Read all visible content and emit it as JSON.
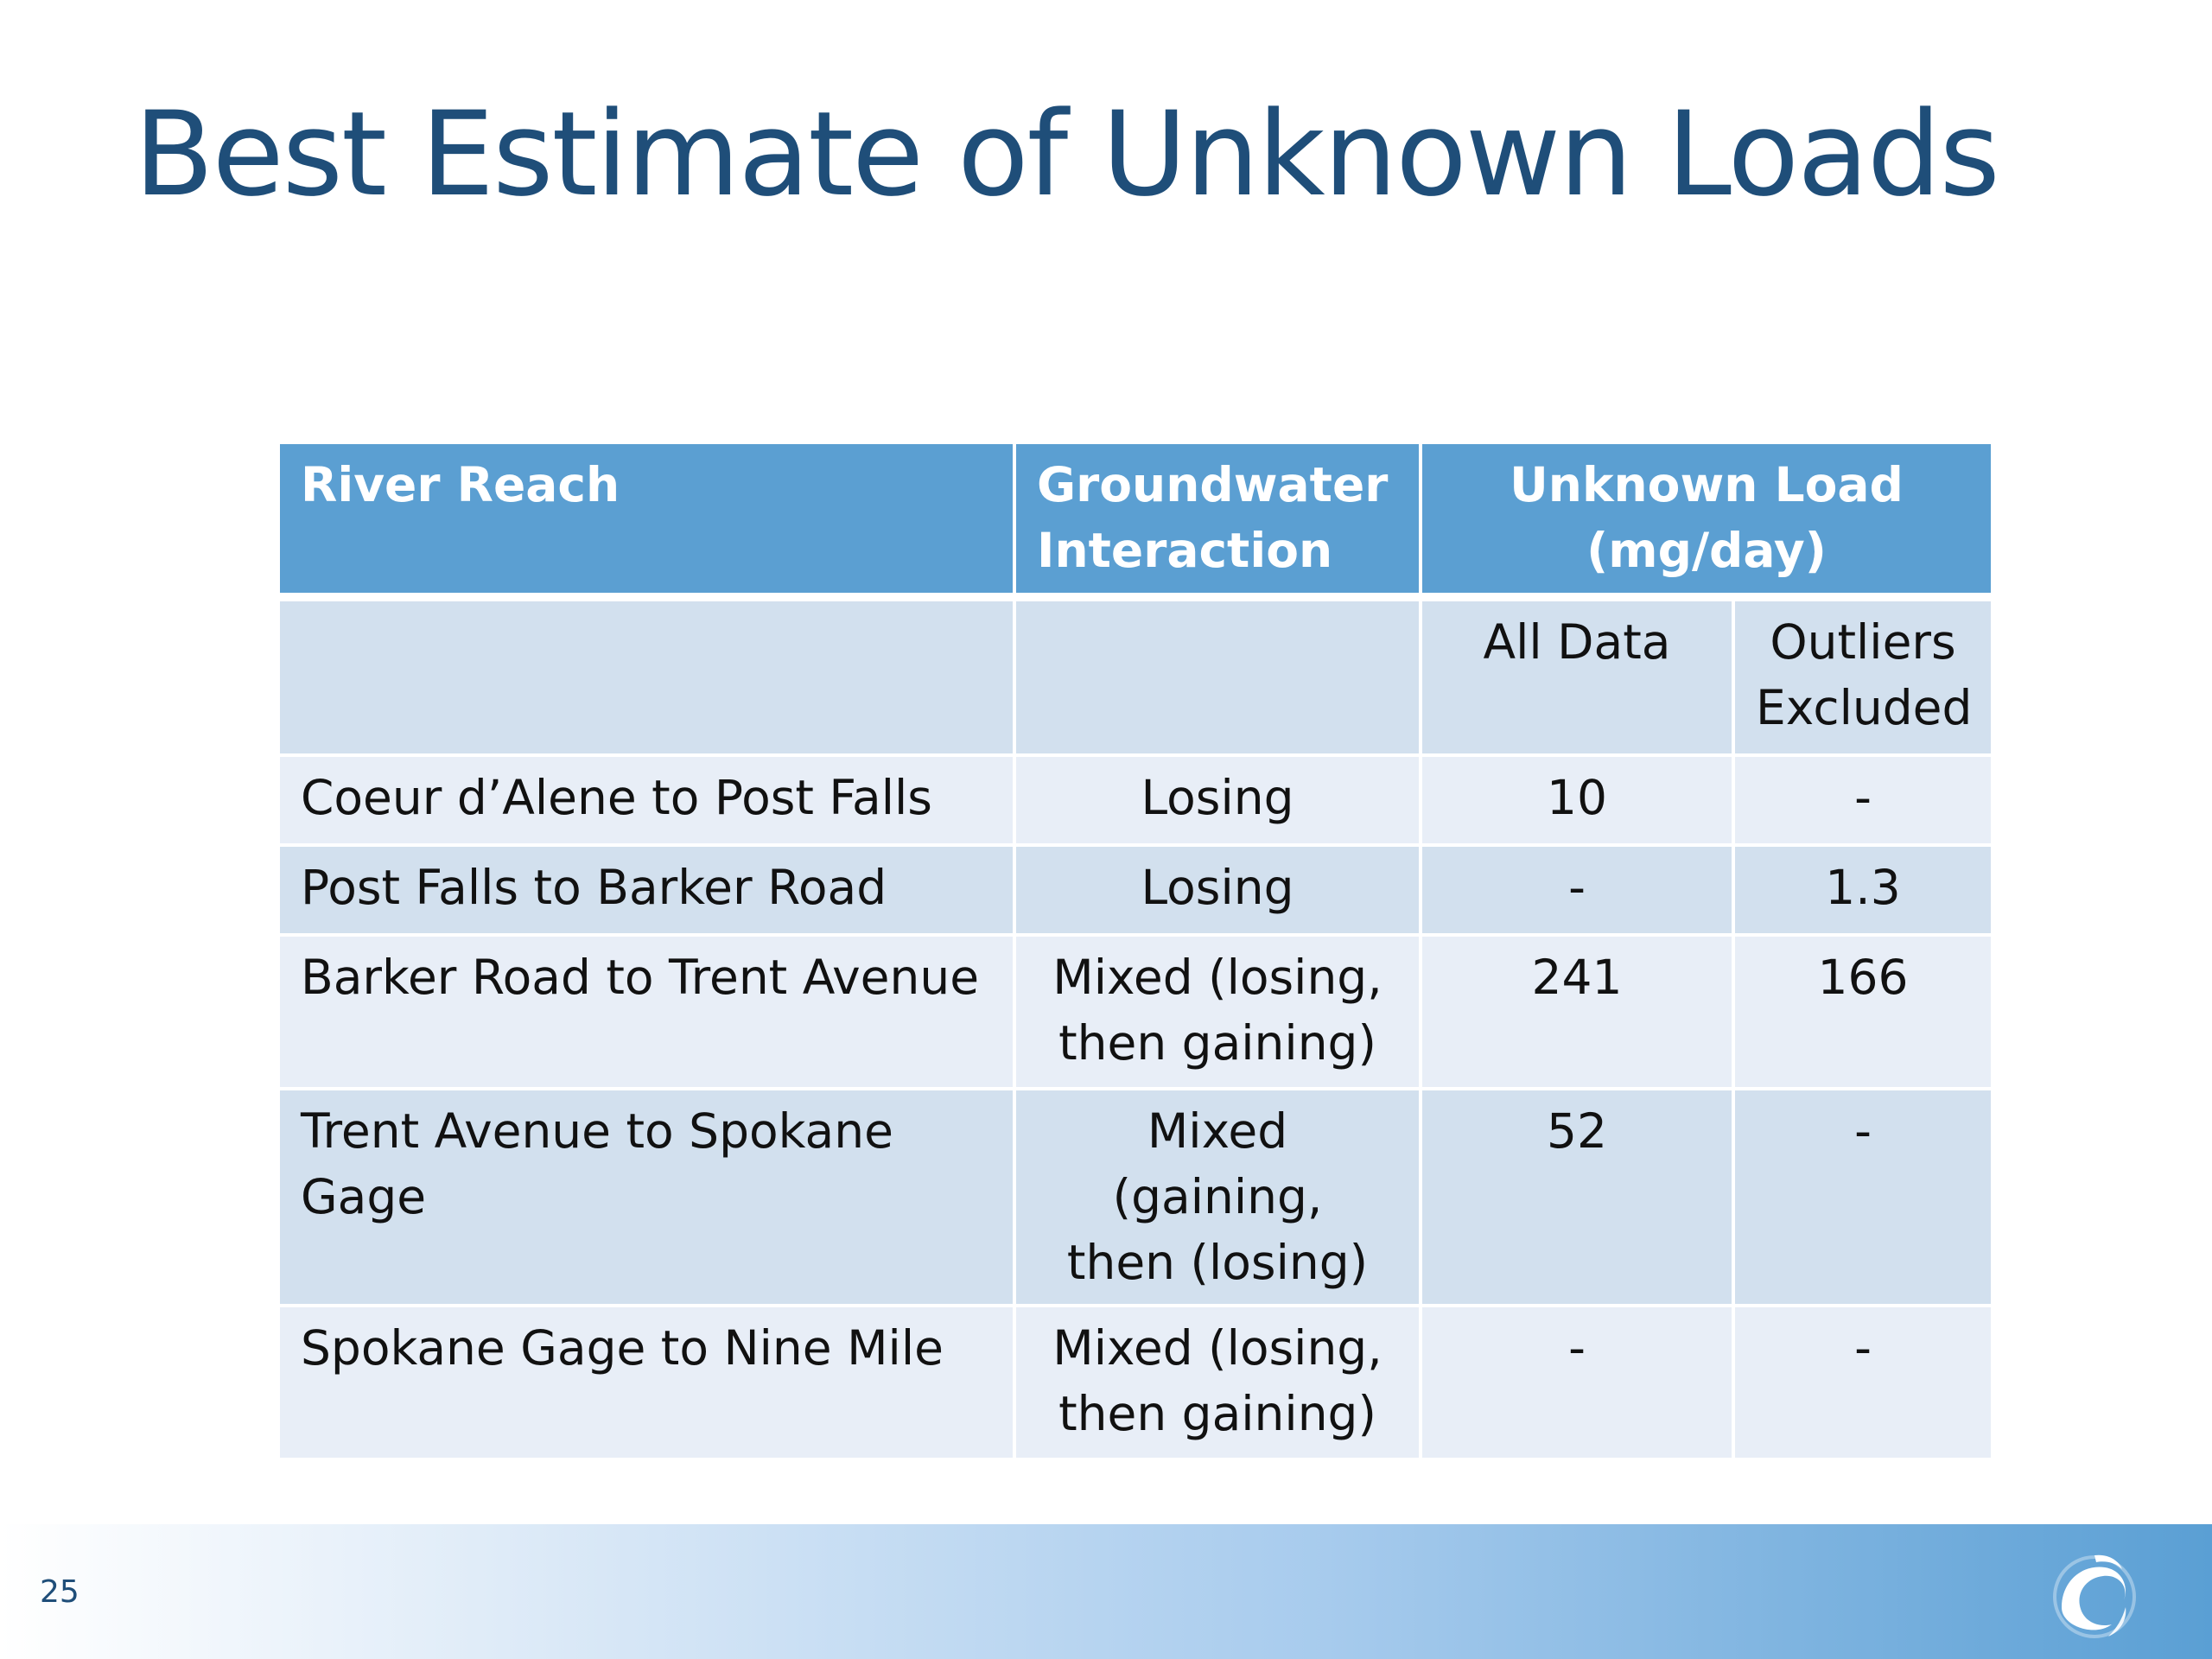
{
  "slide": {
    "title": "Best Estimate of Unknown Loads",
    "number": "25",
    "logo_icon": "swirl-logo-icon"
  },
  "table": {
    "headers": {
      "river_reach": "River Reach",
      "groundwater_line1": "Groundwater",
      "groundwater_line2": "Interaction",
      "load_line1": "Unknown Load",
      "load_line2": "(mg/day)"
    },
    "subheaders": {
      "all_data": "All Data",
      "outliers_line1": "Outliers",
      "outliers_line2": "Excluded"
    },
    "rows": [
      {
        "reach": "Coeur d’Alene to Post Falls",
        "gw_line1": "Losing",
        "gw_line2": "",
        "all_data": "10",
        "outliers_excluded": "-"
      },
      {
        "reach": "Post Falls to Barker Road",
        "gw_line1": "Losing",
        "gw_line2": "",
        "all_data": "-",
        "outliers_excluded": "1.3"
      },
      {
        "reach": "Barker Road to Trent Avenue",
        "gw_line1": "Mixed (losing,",
        "gw_line2": "then gaining)",
        "all_data": "241",
        "outliers_excluded": "166"
      },
      {
        "reach": "Trent Avenue to Spokane Gage",
        "gw_line1": "Mixed (gaining,",
        "gw_line2": "then (losing)",
        "all_data": "52",
        "outliers_excluded": "-"
      },
      {
        "reach": "Spokane Gage to Nine Mile",
        "gw_line1": "Mixed (losing,",
        "gw_line2": "then gaining)",
        "all_data": "-",
        "outliers_excluded": "-"
      }
    ]
  },
  "colors": {
    "title": "#1f4e79",
    "header_bg": "#5b9fd2",
    "row_light": "#e8eef7",
    "row_dark": "#d2e0ee"
  }
}
